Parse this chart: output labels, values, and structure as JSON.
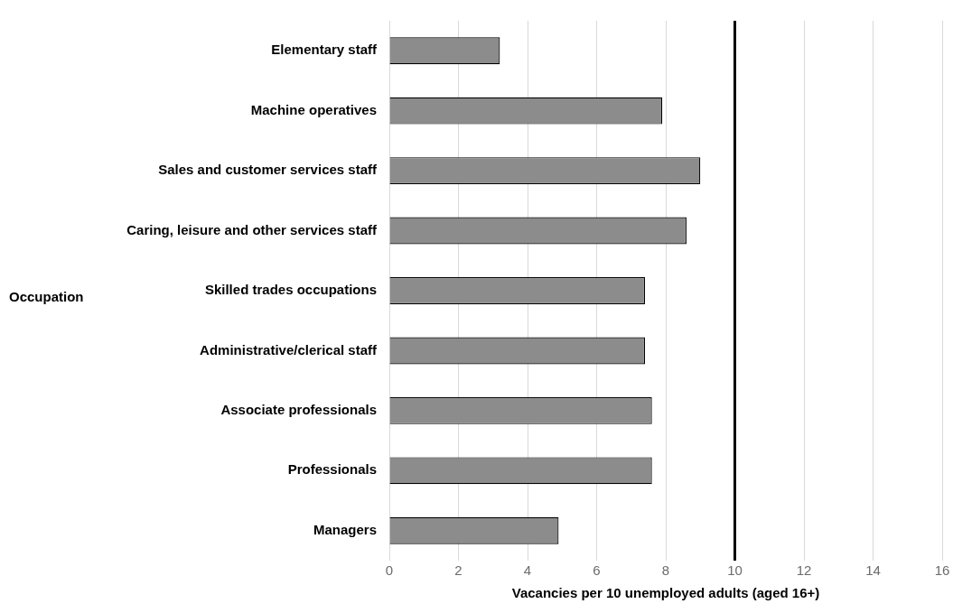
{
  "chart_data": {
    "type": "bar",
    "orientation": "horizontal",
    "xlabel": "Vacancies per 10 unemployed adults (aged 16+)",
    "ylabel": "Occupation",
    "categories": [
      "Elementary staff",
      "Machine operatives",
      "Sales and customer services staff",
      "Caring, leisure and other services staff",
      "Skilled trades occupations",
      "Administrative/clerical staff",
      "Associate professionals",
      "Professionals",
      "Managers"
    ],
    "values": [
      3.2,
      7.9,
      9.0,
      8.6,
      7.4,
      7.4,
      7.6,
      7.6,
      4.9
    ],
    "color": "#8c8c8c",
    "xlim": [
      0,
      16
    ],
    "xticks": [
      0,
      2,
      4,
      6,
      8,
      10,
      12,
      14,
      16
    ],
    "grid": "x",
    "legend": false,
    "ref_lines": [
      {
        "axis": "x",
        "value": 10,
        "color": "#000000"
      }
    ]
  }
}
